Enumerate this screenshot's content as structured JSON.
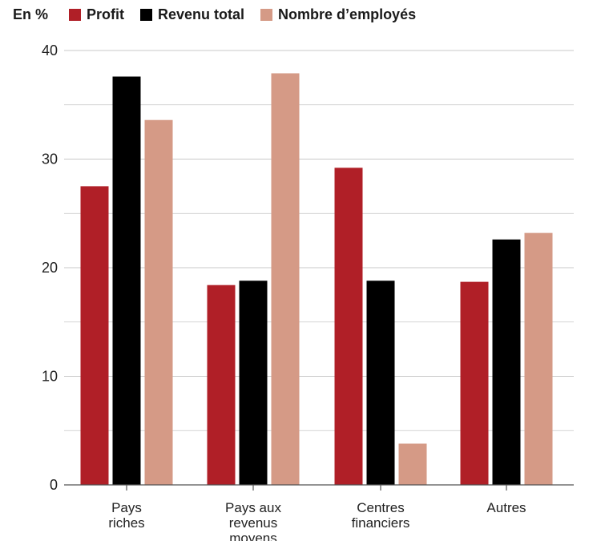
{
  "chart_data": {
    "type": "bar",
    "unit_label": "En %",
    "categories": [
      [
        "Pays",
        "riches"
      ],
      [
        "Pays aux",
        "revenus",
        "moyens"
      ],
      [
        "Centres",
        "financiers"
      ],
      [
        "Autres"
      ]
    ],
    "series": [
      {
        "name": "Profit",
        "color": "#b01f27",
        "values": [
          27.5,
          18.4,
          29.2,
          18.7
        ]
      },
      {
        "name": "Revenu total",
        "color": "#000000",
        "values": [
          37.6,
          18.8,
          18.8,
          22.6
        ]
      },
      {
        "name": "Nombre d’employés",
        "color": "#d59a86",
        "values": [
          33.6,
          37.9,
          3.8,
          23.2
        ]
      }
    ],
    "yticks": [
      0,
      10,
      20,
      30,
      40
    ],
    "ylim": [
      0,
      40
    ],
    "grid": true,
    "legend": "top-left"
  }
}
